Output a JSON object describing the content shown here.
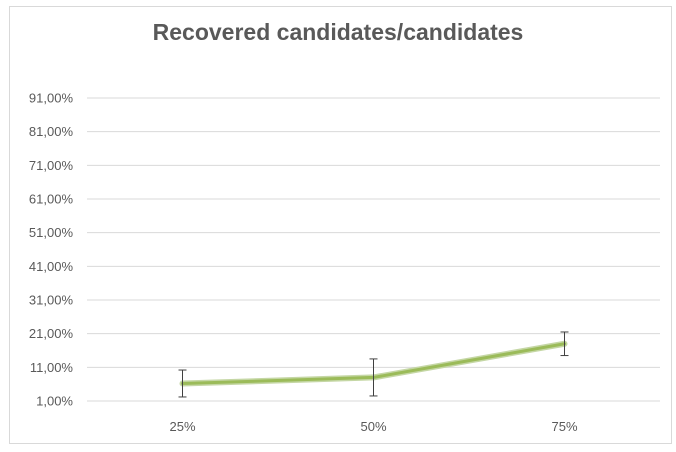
{
  "chart_data": {
    "type": "line",
    "title": "Recovered candidates/candidates",
    "xlabel": "",
    "ylabel": "",
    "categories": [
      "25%",
      "50%",
      "75%"
    ],
    "series": [
      {
        "values": [
          6.2,
          8.0,
          18.0
        ],
        "error": [
          4.0,
          5.5,
          3.5
        ],
        "color": "#9bbb59"
      }
    ],
    "y_ticks": [
      1,
      11,
      21,
      31,
      41,
      51,
      61,
      71,
      81,
      91
    ],
    "y_tick_labels": [
      "1,00%",
      "11,00%",
      "21,00%",
      "31,00%",
      "41,00%",
      "51,00%",
      "61,00%",
      "71,00%",
      "81,00%",
      "91,00%"
    ],
    "ylim": [
      1,
      91
    ],
    "grid": true,
    "legend": "none",
    "gridline_color": "#d9d9d9"
  }
}
